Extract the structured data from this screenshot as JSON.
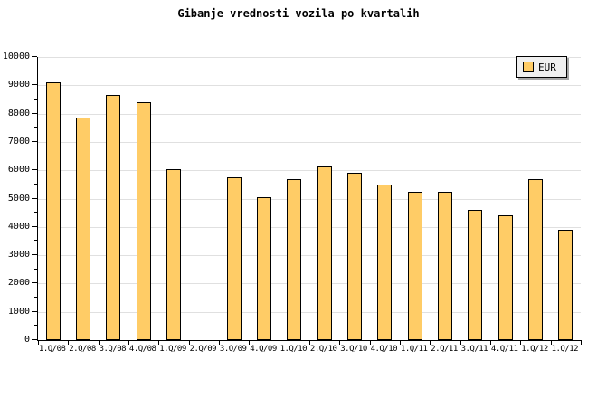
{
  "title": "Gibanje vrednosti vozila po kvartalih",
  "legend": {
    "label": "EUR"
  },
  "colors": {
    "background": "#FFFFFF",
    "bar_fill": "#FFCC66",
    "bar_border": "#000000",
    "grid": "#E0E0E0",
    "axis": "#000000",
    "legend_bg": "#EFEFEF",
    "legend_shadow": "#A6A6A6",
    "text": "#000000"
  },
  "chart_data": {
    "type": "bar",
    "title": "Gibanje vrednosti vozila po kvartalih",
    "xlabel": "",
    "ylabel": "",
    "ylim": [
      0,
      10000
    ],
    "ytick_interval": 1000,
    "ytick_minor_interval": 500,
    "yticks": [
      0,
      1000,
      2000,
      3000,
      4000,
      5000,
      6000,
      7000,
      8000,
      9000,
      10000
    ],
    "grid": true,
    "legend_position": "top-right",
    "categories": [
      "1.Q/08",
      "2.Q/08",
      "3.Q/08",
      "4.Q/08",
      "1.Q/09",
      "2.Q/09",
      "3.Q/09",
      "4.Q/09",
      "1.Q/10",
      "2.Q/10",
      "3.Q/10",
      "4.Q/10",
      "1.Q/11",
      "2.Q/11",
      "3.Q/11",
      "4.Q/11",
      "1.Q/12",
      "1.Q/12"
    ],
    "series": [
      {
        "name": "EUR",
        "values": [
          9100,
          7850,
          8650,
          8400,
          6050,
          null,
          5750,
          5050,
          5700,
          6150,
          5900,
          5500,
          5250,
          5250,
          4600,
          4400,
          5700,
          3900
        ]
      }
    ]
  }
}
